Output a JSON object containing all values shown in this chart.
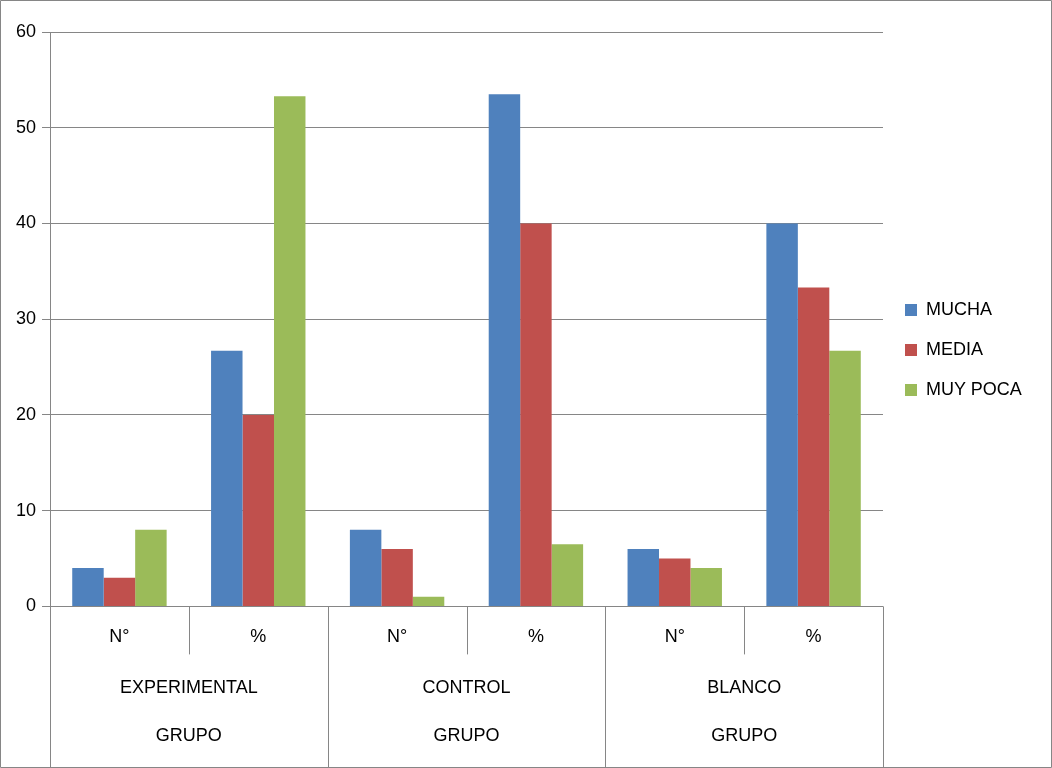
{
  "chart_data": {
    "type": "bar",
    "categories": [
      "N°",
      "%",
      "N°",
      "%",
      "N°",
      "%"
    ],
    "series": [
      {
        "name": "MUCHA",
        "color": "#4f81bd",
        "values": [
          4,
          26.7,
          8,
          53.5,
          6,
          40
        ]
      },
      {
        "name": "MEDIA",
        "color": "#c0504d",
        "values": [
          3,
          20,
          6,
          40,
          5,
          33.3
        ]
      },
      {
        "name": "MUY POCA",
        "color": "#9bbb59",
        "values": [
          8,
          53.3,
          1,
          6.5,
          4,
          26.7
        ]
      }
    ],
    "annotations": [
      "EXPERIMENTAL",
      "GRUPO",
      "CONTROL",
      "GRUPO",
      "BLANCO",
      "GRUPO"
    ],
    "ylim": [
      0,
      60
    ],
    "yticks": [
      0,
      10,
      20,
      30,
      40,
      50,
      60
    ],
    "grid": "y",
    "legend": "right"
  }
}
